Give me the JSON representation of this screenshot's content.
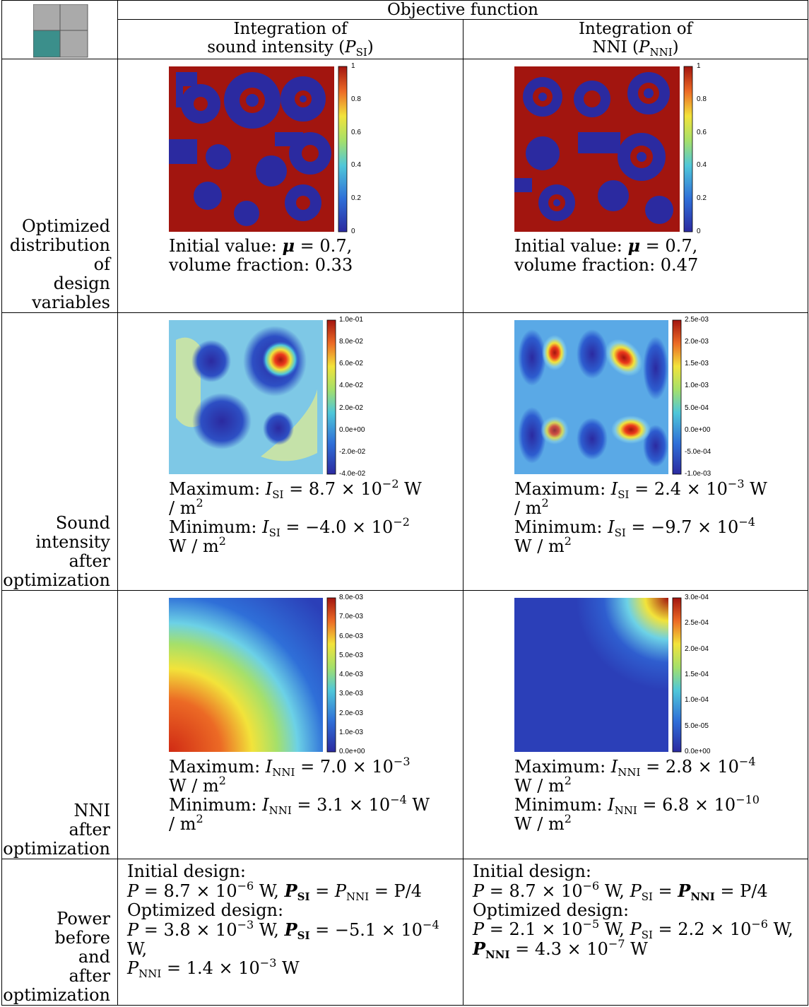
{
  "header": {
    "objective_function": "Objective function",
    "col_si_line1": "Integration of",
    "col_si_line2": "sound intensity (",
    "col_si_sym": "P",
    "col_si_sub": "SI",
    "col_si_close": ")",
    "col_nni_line1": "Integration of",
    "col_nni_line2": "NNI (",
    "col_nni_sym": "P",
    "col_nni_sub": "NNI",
    "col_nni_close": ")"
  },
  "colors": {
    "teal": "#3b8f8b",
    "grey": "#aaaaaa",
    "jet_low": "#2b2aa0",
    "jet_high": "#a2150f"
  },
  "rows": {
    "design": {
      "label_lines": [
        "Optimized",
        "distribution",
        "of",
        "design",
        "variables"
      ],
      "si_caption_1a": "Initial value: ",
      "si_caption_1b": "μ",
      "si_caption_1c": " = 0.7,",
      "si_caption_2": "volume fraction: 0.33",
      "nni_caption_1a": "Initial value: ",
      "nni_caption_1b": "μ",
      "nni_caption_1c": " = 0.7,",
      "nni_caption_2": "volume fraction: 0.47",
      "colorbar_ticks": [
        "1",
        "0.8",
        "0.6",
        "0.4",
        "0.2",
        "0"
      ]
    },
    "intensity": {
      "label_lines": [
        "Sound",
        "intensity",
        "after",
        "optimization"
      ],
      "si_max_a": "Maximum: ",
      "si_max_sym": "I",
      "si_max_sub": "SI",
      "si_max_val": " = 8.7 × 10",
      "si_max_exp": "−2",
      "si_max_unit": " W",
      "si_max_unit2": "/ m",
      "si_min_a": "Minimum:  ",
      "si_min_sym": "I",
      "si_min_sub": "SI",
      "si_min_val": " = −4.0 × 10",
      "si_min_exp": "−2",
      "si_min_unit2": "W / m",
      "nni_max_a": "Maximum: ",
      "nni_max_sym": "I",
      "nni_max_sub": "SI",
      "nni_max_val": " = 2.4 × 10",
      "nni_max_exp": "−3",
      "nni_max_unit": " W",
      "nni_max_unit2": "/ m",
      "nni_min_a": "Minimum:  ",
      "nni_min_sym": "I",
      "nni_min_sub": "SI",
      "nni_min_val": " = −9.7 × 10",
      "nni_min_exp": "−4",
      "nni_min_unit2": "W / m",
      "si_ticks": [
        "1.0e-01",
        "8.0e-02",
        "6.0e-02",
        "4.0e-02",
        "2.0e-02",
        "0.0e+00",
        "-2.0e-02",
        "-4.0e-02"
      ],
      "nni_ticks": [
        "2.5e-03",
        "2.0e-03",
        "1.5e-03",
        "1.0e-03",
        "5.0e-04",
        "0.0e+00",
        "-5.0e-04",
        "-1.0e-03"
      ]
    },
    "nni": {
      "label_lines": [
        "NNI",
        "after",
        "optimization"
      ],
      "si_max_a": "Maximum:  ",
      "si_max_sym": "I",
      "si_max_sub": "NNI",
      "si_max_val": " = 7.0 × 10",
      "si_max_exp": "−3",
      "si_max_unit2": "W / m",
      "si_min_a": "Minimum: ",
      "si_min_sym": "I",
      "si_min_sub": "NNI",
      "si_min_val": " = 3.1 × 10",
      "si_min_exp": "−4",
      "si_min_unit": " W",
      "si_min_unit2": "/ m",
      "nni_max_a": "Maximum:  ",
      "nni_max_sym": "I",
      "nni_max_sub": "NNI",
      "nni_max_val": " = 2.8 × 10",
      "nni_max_exp": "−4",
      "nni_max_unit2": "W / m",
      "nni_min_a": "Minimum:  ",
      "nni_min_sym": "I",
      "nni_min_sub": "NNI",
      "nni_min_val": " = 6.8 × 10",
      "nni_min_exp": "−10",
      "nni_min_unit2": "W / m",
      "si_ticks": [
        "8.0e-03",
        "7.0e-03",
        "6.0e-03",
        "5.0e-03",
        "4.0e-03",
        "3.0e-03",
        "2.0e-03",
        "1.0e-03",
        "0.0e+00"
      ],
      "nni_ticks": [
        "3.0e-04",
        "2.5e-04",
        "2.0e-04",
        "1.5e-04",
        "1.0e-04",
        "5.0e-05",
        "0.0e+00"
      ]
    },
    "power": {
      "label_lines": [
        "Power",
        "before",
        "and",
        "after",
        "optimization"
      ],
      "initial": "Initial design:",
      "optimized": "Optimized design:",
      "si_init_p": "P",
      "si_init_val": " = 8.7 × 10",
      "si_init_exp": "−6",
      "si_init_w": " W, ",
      "si_init_psi": "P",
      "si_init_psi_sub": "SI",
      "si_init_eq": " = ",
      "si_init_pnni": "P",
      "si_init_pnni_sub": "NNI",
      "si_init_end": " = P/4",
      "si_opt_p": "P",
      "si_opt_val": " = 3.8 × 10",
      "si_opt_exp": "−3",
      "si_opt_w": " W, ",
      "si_opt_psi": "P",
      "si_opt_psi_sub": "SI",
      "si_opt_psi_val": " = −5.1 × 10",
      "si_opt_psi_exp": "−4",
      "si_opt_psi_w": " W,",
      "si_opt_pnni": "P",
      "si_opt_pnni_sub": "NNI",
      "si_opt_pnni_val": " = 1.4 × 10",
      "si_opt_pnni_exp": "−3",
      "si_opt_pnni_w": " W",
      "nni_init_p": "P",
      "nni_init_val": " = 8.7 × 10",
      "nni_init_exp": "−6",
      "nni_init_w": " W, ",
      "nni_init_psi": "P",
      "nni_init_psi_sub": "SI",
      "nni_init_eq": " = ",
      "nni_init_pnni": "P",
      "nni_init_pnni_sub": "NNI",
      "nni_init_end": " = P/4",
      "nni_opt_p": "P",
      "nni_opt_val": " = 2.1 × 10",
      "nni_opt_exp": "−5",
      "nni_opt_w": " W, ",
      "nni_opt_psi": "P",
      "nni_opt_psi_sub": "SI",
      "nni_opt_psi_val": " = 2.2 × 10",
      "nni_opt_psi_exp": "−6",
      "nni_opt_psi_w": " W,",
      "nni_opt_pnni": "P",
      "nni_opt_pnni_sub": "NNI",
      "nni_opt_pnni_val": " = 4.3 × 10",
      "nni_opt_pnni_exp": "−7",
      "nni_opt_pnni_w": " W"
    }
  }
}
